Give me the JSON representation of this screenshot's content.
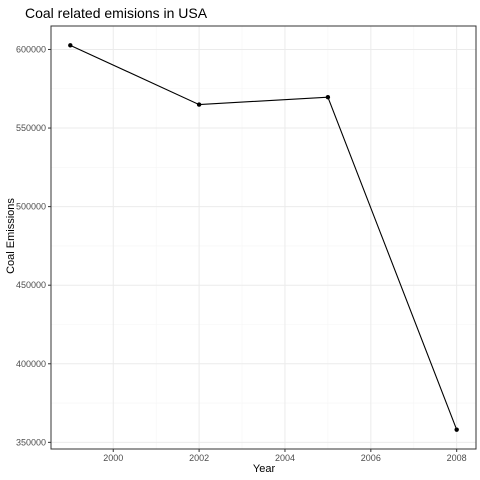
{
  "chart_data": {
    "type": "line",
    "title": "Coal related emisions in USA",
    "xlabel": "Year",
    "ylabel": "Coal Emissions",
    "x": [
      1999,
      2002,
      2005,
      2008
    ],
    "series": [
      {
        "values": [
          602624,
          564940,
          569655,
          358084
        ]
      }
    ],
    "xlim": [
      1998.55,
      2008.45
    ],
    "ylim": [
      345775,
      614933
    ],
    "xticks": [
      2000,
      2002,
      2004,
      2006,
      2008
    ],
    "xtick_labels": [
      "2000",
      "2002",
      "2004",
      "2006",
      "2008"
    ],
    "yticks": [
      350000,
      400000,
      450000,
      500000,
      550000,
      600000
    ],
    "ytick_labels": [
      "350000",
      "400000",
      "450000",
      "500000",
      "550000",
      "600000"
    ],
    "grid": true,
    "panel_border": true,
    "legend": "none",
    "colors": {
      "line": "#000000",
      "point": "#000000",
      "grid_major": "#ebebeb",
      "grid_minor": "#f5f5f5",
      "border": "#333333",
      "tick_text": "#4d4d4d"
    }
  }
}
